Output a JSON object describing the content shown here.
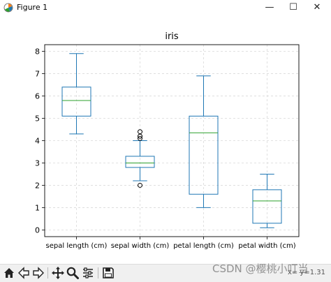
{
  "window": {
    "title": "Figure 1",
    "minimize": "—",
    "maximize": "☐",
    "close": "✕"
  },
  "colors": {
    "box": "#1f77b4",
    "median": "#2ca02c",
    "grid": "#d9d9d9",
    "outlier": "#000000"
  },
  "chart_data": {
    "type": "box",
    "title": "iris",
    "categories": [
      "sepal length (cm)",
      "sepal width (cm)",
      "petal length (cm)",
      "petal width (cm)"
    ],
    "boxes": [
      {
        "whislo": 4.3,
        "q1": 5.1,
        "med": 5.8,
        "q3": 6.4,
        "whishi": 7.9,
        "fliers": []
      },
      {
        "whislo": 2.2,
        "q1": 2.8,
        "med": 3.0,
        "q3": 3.3,
        "whishi": 4.0,
        "fliers": [
          4.4,
          4.1,
          4.2,
          2.0
        ]
      },
      {
        "whislo": 1.0,
        "q1": 1.6,
        "med": 4.35,
        "q3": 5.1,
        "whishi": 6.9,
        "fliers": []
      },
      {
        "whislo": 0.1,
        "q1": 0.3,
        "med": 1.3,
        "q3": 1.8,
        "whishi": 2.5,
        "fliers": []
      }
    ],
    "yticks": [
      0,
      1,
      2,
      3,
      4,
      5,
      6,
      7,
      8
    ],
    "ylim": [
      -0.3,
      8.3
    ],
    "grid": true
  },
  "toolbar": {
    "items": [
      {
        "name": "home-button",
        "icon": "home-icon"
      },
      {
        "name": "back-button",
        "icon": "arrow-left-icon"
      },
      {
        "name": "forward-button",
        "icon": "arrow-right-icon"
      },
      {
        "name": "pan-button",
        "icon": "move-icon"
      },
      {
        "name": "zoom-button",
        "icon": "magnifier-icon"
      },
      {
        "name": "configure-subplots-button",
        "icon": "sliders-icon"
      },
      {
        "name": "save-button",
        "icon": "floppy-disk-icon"
      }
    ],
    "status": "x= y=1.31"
  },
  "watermark": "CSDN @樱桃小叮当"
}
